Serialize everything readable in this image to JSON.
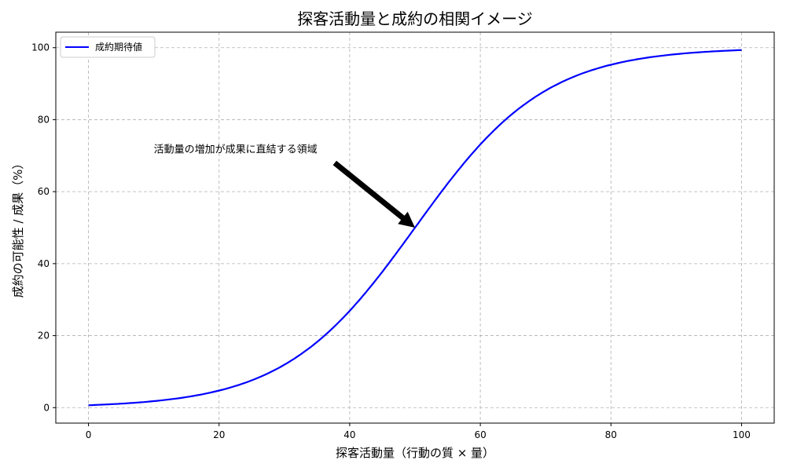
{
  "chart_data": {
    "type": "line",
    "title": "探客活動量と成約の相関イメージ",
    "xlabel": "探客活動量（行動の質 × 量）",
    "ylabel": "成約の可能性 / 成果（%）",
    "xlim": [
      -5,
      105
    ],
    "ylim": [
      -4.3,
      104.3
    ],
    "xticks": [
      0,
      20,
      40,
      60,
      80,
      100
    ],
    "yticks": [
      0,
      20,
      40,
      60,
      80,
      100
    ],
    "grid": true,
    "legend_position": "top-left",
    "series": [
      {
        "name": "成約期待値",
        "color": "#0000ff",
        "function": "100/(1+exp(-0.1*(x-50)))",
        "x_range": [
          0,
          100
        ]
      }
    ],
    "annotation": {
      "text": "活動量の増加が成果に直結する領域",
      "text_at": [
        10,
        70
      ],
      "arrow_from": [
        37.7,
        68
      ],
      "arrow_to": [
        50,
        50
      ]
    }
  }
}
